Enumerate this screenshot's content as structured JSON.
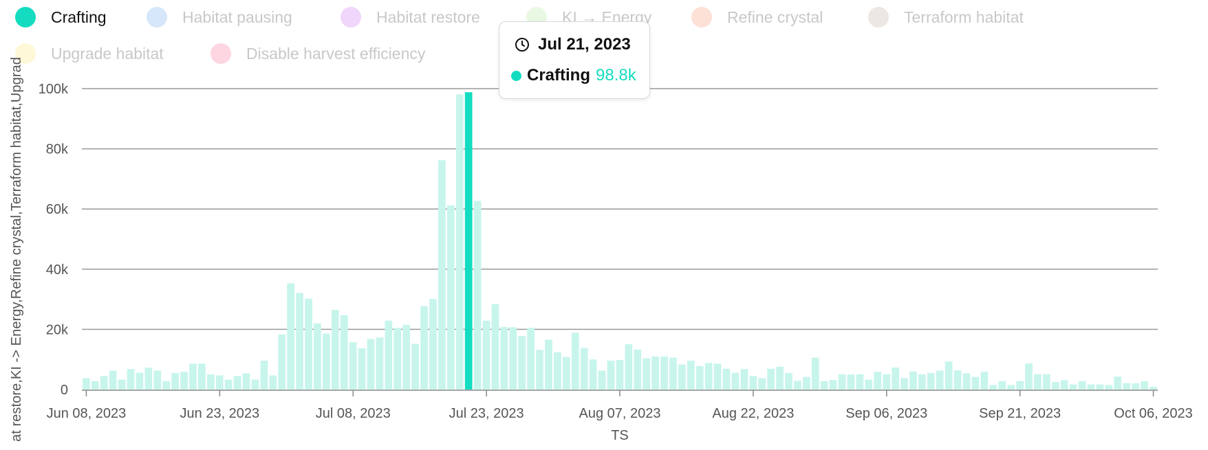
{
  "legend": [
    {
      "label": "Crafting",
      "color": "#14dcc0",
      "active": true
    },
    {
      "label": "Habitat pausing",
      "color": "#d6e7fb",
      "active": false
    },
    {
      "label": "Habitat restore",
      "color": "#f1d6fb",
      "active": false
    },
    {
      "label": "KI → Energy",
      "color": "#e9f8e3",
      "active": false
    },
    {
      "label": "Refine crystal",
      "color": "#fde0d6",
      "active": false
    },
    {
      "label": "Terraform habitat",
      "color": "#ece7e2",
      "active": false
    },
    {
      "label": "Upgrade habitat",
      "color": "#fef8d8",
      "active": false
    },
    {
      "label": "Disable harvest efficiency",
      "color": "#fdd6e1",
      "active": false
    }
  ],
  "tooltip": {
    "date": "Jul 21, 2023",
    "series": "Crafting",
    "value": "98.8k",
    "color": "#14dcc0"
  },
  "chart_data": {
    "type": "bar",
    "xlabel": "TS",
    "ylabel": "at restore,KI -> Energy,Refine crystal,Terraform habitat,Upgrad",
    "ylim": [
      0,
      100000
    ],
    "yticks": [
      "0",
      "20k",
      "40k",
      "60k",
      "80k",
      "100k"
    ],
    "xticks": [
      "Jun 08, 2023",
      "Jun 23, 2023",
      "Jul 08, 2023",
      "Jul 23, 2023",
      "Aug 07, 2023",
      "Aug 22, 2023",
      "Sep 06, 2023",
      "Sep 21, 2023",
      "Oct 06, 2023"
    ],
    "x_start": "2023-06-08",
    "x_end": "2023-10-07",
    "highlight_date": "2023-07-21",
    "grid": true,
    "legend_position": "top",
    "bar_color": "#c7f5ec",
    "highlight_color": "#14dcc0",
    "series": [
      {
        "name": "Crafting",
        "values": [
          3800,
          2800,
          4500,
          6300,
          3300,
          6800,
          5600,
          7300,
          6300,
          2800,
          5500,
          5900,
          8600,
          8600,
          5000,
          4700,
          3300,
          4500,
          5400,
          3300,
          9600,
          4700,
          18300,
          35300,
          32100,
          30200,
          22000,
          18600,
          26500,
          24700,
          15700,
          13700,
          16800,
          17300,
          22900,
          20500,
          21500,
          15200,
          27700,
          30100,
          76200,
          61200,
          98100,
          98800,
          62700,
          22900,
          28400,
          20800,
          20700,
          17800,
          20500,
          13200,
          16600,
          12400,
          10800,
          18900,
          13800,
          10000,
          6300,
          9600,
          9800,
          15100,
          13300,
          10400,
          11000,
          11000,
          10600,
          8300,
          9600,
          7800,
          8800,
          8600,
          6900,
          5600,
          6800,
          4500,
          3800,
          6900,
          7600,
          5500,
          2900,
          4200,
          10600,
          2800,
          3200,
          5100,
          5000,
          5100,
          3300,
          5900,
          5100,
          7300,
          3800,
          6000,
          5100,
          5500,
          6300,
          9300,
          6400,
          5400,
          4200,
          5900,
          1500,
          2800,
          1500,
          2800,
          8700,
          5100,
          5100,
          2500,
          3100,
          1700,
          2800,
          1700,
          1700,
          1500,
          4300,
          2100,
          2100,
          2700,
          900
        ]
      }
    ]
  }
}
